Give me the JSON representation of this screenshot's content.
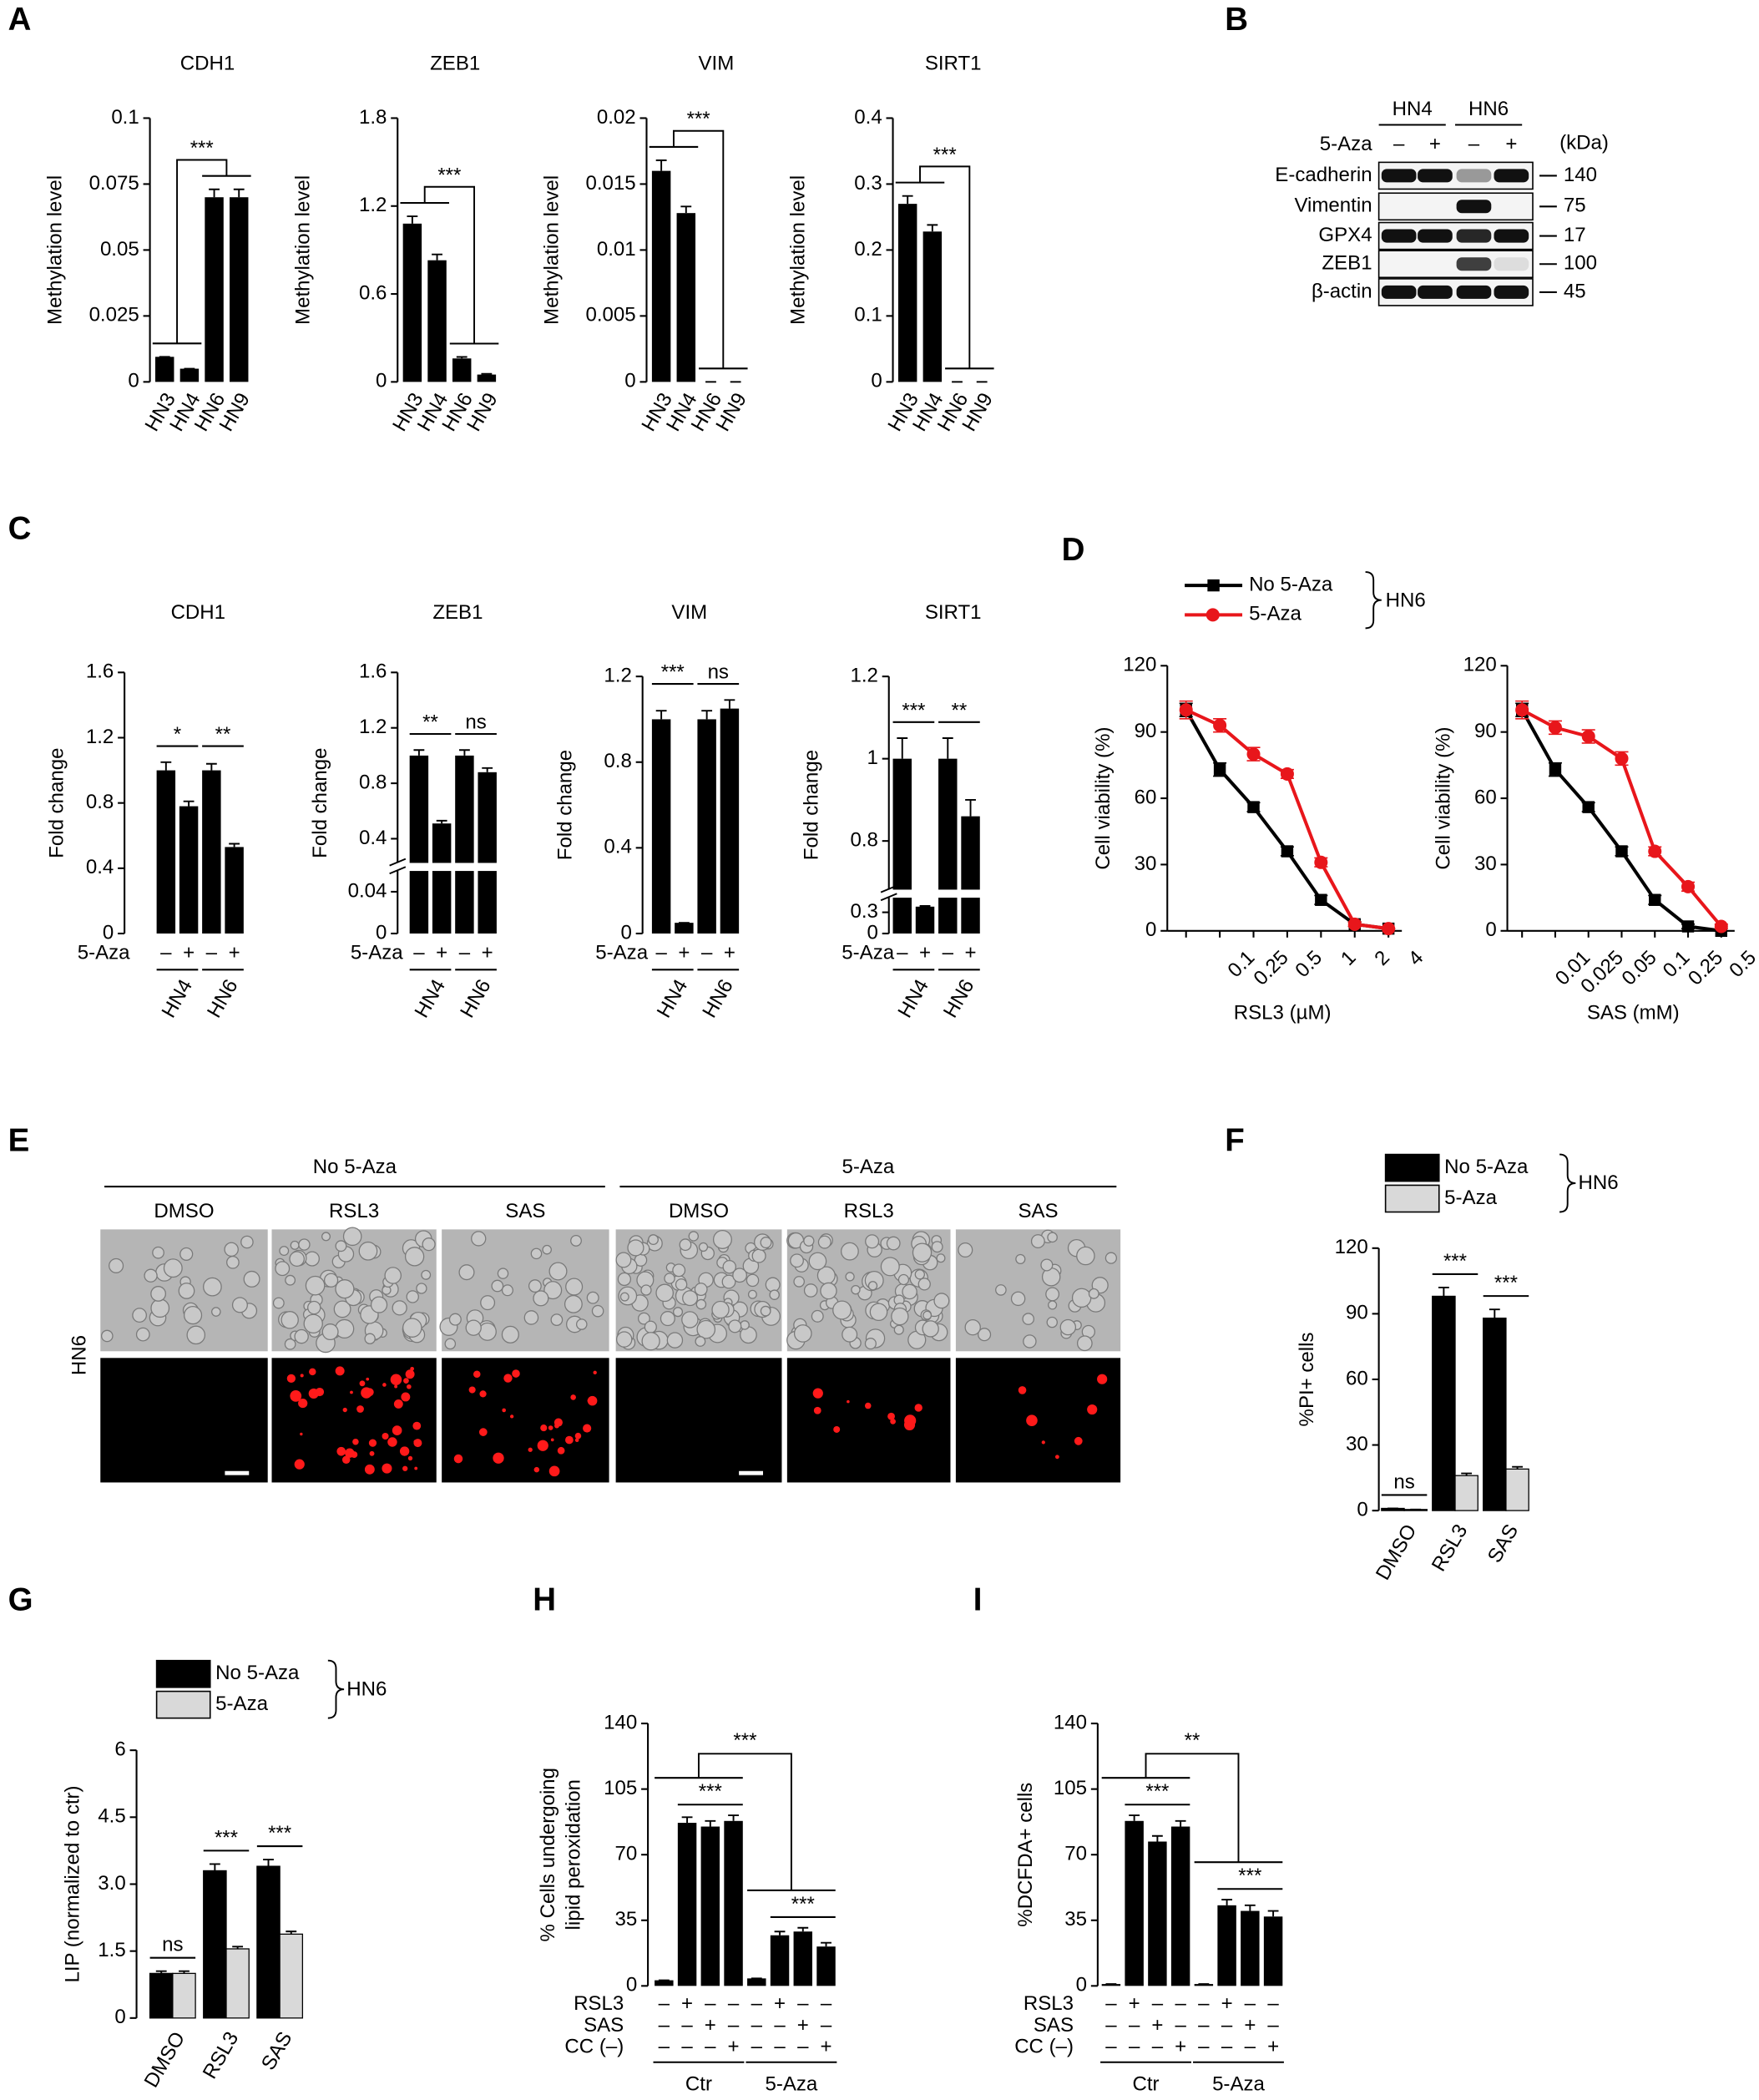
{
  "panel_labels": [
    "A",
    "B",
    "C",
    "D",
    "E",
    "F",
    "G",
    "H",
    "I"
  ],
  "blot": {
    "columns": [
      "HN4",
      "HN6"
    ],
    "treatment_label": "5-Aza",
    "lanes": [
      "–",
      "+",
      "–",
      "+"
    ],
    "unit": "(kDa)",
    "rows": [
      {
        "protein": "E-cadherin",
        "kda": 140
      },
      {
        "protein": "Vimentin",
        "kda": 75
      },
      {
        "protein": "GPX4",
        "kda": 17
      },
      {
        "protein": "ZEB1",
        "kda": 100
      },
      {
        "protein": "β-actin",
        "kda": 45
      }
    ]
  },
  "microscopy": {
    "cell_line": "HN6",
    "conditions": [
      {
        "name": "No 5-Aza",
        "treatments": [
          "DMSO",
          "RSL3",
          "SAS"
        ]
      },
      {
        "name": "5-Aza",
        "treatments": [
          "DMSO",
          "RSL3",
          "SAS"
        ]
      }
    ]
  },
  "chart_data": [
    {
      "type": "bar",
      "title": "CDH1",
      "ylabel": "Methylation level",
      "categories": [
        "HN3",
        "HN4",
        "HN6",
        "HN9"
      ],
      "values": [
        0.0095,
        0.005,
        0.07,
        0.07
      ],
      "errors": [
        0,
        0,
        0.003,
        0.003
      ],
      "color": "#000000",
      "ylim": [
        0,
        0.1
      ],
      "yticks": [
        0,
        0.025,
        0.05,
        0.075,
        0.1
      ],
      "annotations": [
        "***"
      ]
    },
    {
      "type": "bar",
      "title": "ZEB1",
      "ylabel": "Methylation level",
      "categories": [
        "HN3",
        "HN4",
        "HN6",
        "HN9"
      ],
      "values": [
        1.08,
        0.83,
        0.16,
        0.05
      ],
      "errors": [
        0.05,
        0.04,
        0.01,
        0.005
      ],
      "color": "#000000",
      "ylim": [
        0,
        1.8
      ],
      "yticks": [
        0,
        0.6,
        1.2,
        1.8
      ],
      "annotations": [
        "***"
      ]
    },
    {
      "type": "bar",
      "title": "VIM",
      "ylabel": "Methylation level",
      "categories": [
        "HN3",
        "HN4",
        "HN6",
        "HN9"
      ],
      "values": [
        0.016,
        0.0128,
        0,
        0
      ],
      "errors": [
        0.0008,
        0.0005,
        0,
        0
      ],
      "color": "#000000",
      "ylim": [
        0,
        0.02
      ],
      "yticks": [
        0,
        0.005,
        0.01,
        0.015,
        0.02
      ],
      "annotations": [
        "***"
      ]
    },
    {
      "type": "bar",
      "title": "SIRT1",
      "ylabel": "Methylation level",
      "categories": [
        "HN3",
        "HN4",
        "HN6",
        "HN9"
      ],
      "values": [
        0.27,
        0.228,
        0,
        0
      ],
      "errors": [
        0.012,
        0.01,
        0,
        0
      ],
      "color": "#000000",
      "ylim": [
        0,
        0.4
      ],
      "yticks": [
        0,
        0.1,
        0.2,
        0.3,
        0.4
      ],
      "annotations": [
        "***"
      ]
    },
    {
      "type": "bar",
      "title": "CDH1",
      "ylabel": "Fold change",
      "row_label": "5-Aza",
      "categories": [
        "–",
        "+",
        "–",
        "+"
      ],
      "groups": [
        "HN4",
        "HN6"
      ],
      "values": [
        1.0,
        0.78,
        1.0,
        0.53
      ],
      "errors": [
        0.05,
        0.03,
        0.04,
        0.02
      ],
      "color": "#000000",
      "ylim": [
        0,
        1.6
      ],
      "yticks": [
        0,
        0.4,
        0.8,
        1.2,
        1.6
      ],
      "annotations": [
        "*",
        "**"
      ]
    },
    {
      "type": "bar",
      "title": "ZEB1",
      "ylabel": "Fold change",
      "row_label": "5-Aza",
      "categories": [
        "–",
        "+",
        "–",
        "+"
      ],
      "groups": [
        "HN4",
        "HN6"
      ],
      "values": [
        1.0,
        0.51,
        1.0,
        0.88
      ],
      "errors": [
        0.04,
        0.02,
        0.04,
        0.03
      ],
      "color": "#000000",
      "ylim": [
        0,
        1.6
      ],
      "ybreak": [
        0.05,
        0.3
      ],
      "yticks": [
        0,
        0.04,
        0.4,
        0.8,
        1.2,
        1.6
      ],
      "annotations": [
        "**",
        "ns"
      ]
    },
    {
      "type": "bar",
      "title": "VIM",
      "ylabel": "Fold change",
      "row_label": "5-Aza",
      "categories": [
        "–",
        "+",
        "–",
        "+"
      ],
      "groups": [
        "HN4",
        "HN6"
      ],
      "values": [
        1.0,
        0.05,
        1.0,
        1.05
      ],
      "errors": [
        0.04,
        0,
        0.04,
        0.04
      ],
      "color": "#000000",
      "ylim": [
        0,
        1.2
      ],
      "yticks": [
        0,
        0.4,
        0.8,
        1.2
      ],
      "annotations": [
        "***",
        "ns"
      ]
    },
    {
      "type": "bar",
      "title": "SIRT1",
      "ylabel": "Fold change",
      "row_label": "5-Aza",
      "categories": [
        "–",
        "+",
        "–",
        "+"
      ],
      "groups": [
        "HN4",
        "HN6"
      ],
      "values": [
        1.0,
        0.38,
        1.0,
        0.86
      ],
      "errors": [
        0.05,
        0.01,
        0.05,
        0.04
      ],
      "color": "#000000",
      "ylim": [
        0,
        1.2
      ],
      "ybreak": [
        0.4,
        0.7
      ],
      "yticks": [
        0,
        0.3,
        0.8,
        1.0,
        1.2
      ],
      "annotations": [
        "***",
        "**"
      ]
    },
    {
      "type": "line",
      "xlabel": "RSL3 (µM)",
      "ylabel": "Cell viability (%)",
      "legend_group": "HN6",
      "categories": [
        null,
        "0.1",
        "0.25",
        "0.5",
        "1",
        "2",
        "4"
      ],
      "series": [
        {
          "name": "No 5-Aza",
          "color": "#000000",
          "marker": "square",
          "values": [
            100,
            73,
            56,
            36,
            14,
            3,
            1
          ],
          "errors": [
            3,
            3,
            2,
            2,
            2,
            1,
            0
          ]
        },
        {
          "name": "5-Aza",
          "color": "#e8161b",
          "marker": "circle",
          "values": [
            100,
            93,
            80,
            71,
            31,
            3,
            1
          ],
          "errors": [
            4,
            3,
            3,
            2,
            2,
            1,
            0
          ]
        }
      ],
      "ylim": [
        0,
        120
      ],
      "yticks": [
        0,
        30,
        60,
        90,
        120
      ]
    },
    {
      "type": "line",
      "xlabel": "SAS (mM)",
      "ylabel": "Cell viability (%)",
      "categories": [
        null,
        "0.01",
        "0.025",
        "0.05",
        "0.1",
        "0.25",
        "0.5"
      ],
      "series": [
        {
          "color": "#000000",
          "marker": "square",
          "values": [
            100,
            73,
            56,
            36,
            14,
            2,
            0
          ],
          "errors": [
            3,
            3,
            2,
            2,
            2,
            1,
            0
          ]
        },
        {
          "color": "#e8161b",
          "marker": "circle",
          "values": [
            100,
            92,
            88,
            78,
            36,
            20,
            2
          ],
          "errors": [
            4,
            3,
            3,
            3,
            2,
            2,
            1
          ]
        }
      ],
      "ylim": [
        0,
        120
      ],
      "yticks": [
        0,
        30,
        60,
        90,
        120
      ]
    },
    {
      "type": "bar",
      "ylabel": "%PI+ cells",
      "legend_group": "HN6",
      "categories": [
        "DMSO",
        "RSL3",
        "SAS"
      ],
      "series": [
        {
          "name": "No 5-Aza",
          "color": "#000000",
          "values": [
            1,
            98,
            88
          ],
          "errors": [
            0,
            4,
            4
          ]
        },
        {
          "name": "5-Aza",
          "color": "#d9d9d9",
          "values": [
            0.5,
            16,
            19
          ],
          "errors": [
            0,
            1,
            1
          ]
        }
      ],
      "ylim": [
        0,
        120
      ],
      "yticks": [
        0,
        30,
        60,
        90,
        120
      ],
      "annotations": [
        "ns",
        "***",
        "***"
      ]
    },
    {
      "type": "bar",
      "ylabel": "LIP (normalized to ctr)",
      "legend_group": "HN6",
      "categories": [
        "DMSO",
        "RSL3",
        "SAS"
      ],
      "series": [
        {
          "name": "No 5-Aza",
          "color": "#000000",
          "values": [
            1,
            3.3,
            3.4
          ],
          "errors": [
            0.05,
            0.15,
            0.15
          ]
        },
        {
          "name": "5-Aza",
          "color": "#d9d9d9",
          "values": [
            1,
            1.55,
            1.88
          ],
          "errors": [
            0.05,
            0.05,
            0.06
          ]
        }
      ],
      "ylim": [
        0,
        6
      ],
      "yticks": [
        0,
        1.5,
        {
          "value": 3,
          "label": "3.0"
        },
        4.5,
        6
      ],
      "annotations": [
        "ns",
        "***",
        "***"
      ]
    },
    {
      "type": "bar",
      "ylabel": [
        "% Cells undergoing",
        "lipid peroxidation"
      ],
      "values": [
        3,
        87,
        85,
        88,
        4,
        27,
        29,
        21
      ],
      "errors": [
        0,
        3,
        3,
        3,
        0,
        2,
        2,
        2
      ],
      "color": "#000000",
      "rows": [
        {
          "label": "RSL3",
          "signs": [
            "–",
            "+",
            "–",
            "–",
            "–",
            "+",
            "–",
            "–"
          ]
        },
        {
          "label": "SAS",
          "signs": [
            "–",
            "–",
            "+",
            "–",
            "–",
            "–",
            "+",
            "–"
          ]
        },
        {
          "label": "CC (–)",
          "signs": [
            "–",
            "–",
            "–",
            "+",
            "–",
            "–",
            "–",
            "+"
          ]
        }
      ],
      "groups": [
        "Ctr",
        "5-Aza"
      ],
      "ylim": [
        0,
        140
      ],
      "yticks": [
        0,
        35,
        70,
        105,
        140
      ],
      "annotations": [
        "***",
        "***",
        "***"
      ]
    },
    {
      "type": "bar",
      "ylabel": "%DCFDA+ cells",
      "values": [
        1,
        88,
        77,
        85,
        1,
        43,
        40,
        37
      ],
      "errors": [
        0,
        3,
        3,
        3,
        0,
        3,
        3,
        3
      ],
      "color": "#000000",
      "rows": [
        {
          "label": "RSL3",
          "signs": [
            "–",
            "+",
            "–",
            "–",
            "–",
            "+",
            "–",
            "–"
          ]
        },
        {
          "label": "SAS",
          "signs": [
            "–",
            "–",
            "+",
            "–",
            "–",
            "–",
            "+",
            "–"
          ]
        },
        {
          "label": "CC (–)",
          "signs": [
            "–",
            "–",
            "–",
            "+",
            "–",
            "–",
            "–",
            "+"
          ]
        }
      ],
      "groups": [
        "Ctr",
        "5-Aza"
      ],
      "ylim": [
        0,
        140
      ],
      "yticks": [
        0,
        35,
        70,
        105,
        140
      ],
      "annotations": [
        "***",
        "***",
        "**"
      ]
    }
  ]
}
